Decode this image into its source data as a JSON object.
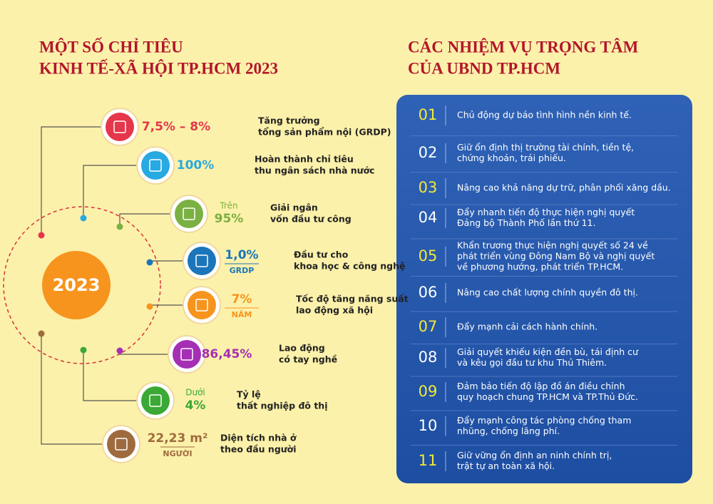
{
  "left": {
    "title_lines": [
      "MỘT SỐ CHỈ TIÊU",
      "KINH TẾ-XÃ HỘI TP.HCM 2023"
    ],
    "center": "2023",
    "items": [
      {
        "value": "7,5% – 8%",
        "label_lines": [
          "Tăng trưởng",
          "tổng sản phẩm nội (GRDP)"
        ]
      },
      {
        "value": "100%",
        "label_lines": [
          "Hoàn thành chỉ tiêu",
          "thu ngân sách nhà nước"
        ]
      },
      {
        "prefix": "Trên",
        "value": "95%",
        "label_lines": [
          "Giải ngân",
          "vốn đầu tư công"
        ]
      },
      {
        "value": "1,0%",
        "unit": "GRDP",
        "label_lines": [
          "Đầu tư cho",
          "khoa học & công nghệ"
        ]
      },
      {
        "value": "7%",
        "unit": "NĂM",
        "label_lines": [
          "Tốc độ tăng năng suất",
          "lao động xã hội"
        ]
      },
      {
        "value": "86,45%",
        "label_lines": [
          "Lao động",
          "có tay nghề"
        ]
      },
      {
        "prefix": "Dưới",
        "value": "4%",
        "label_lines": [
          "Tỷ lệ",
          "thất nghiệp đô thị"
        ]
      },
      {
        "value": "22,23 m²",
        "unit": "NGƯỜI",
        "label_lines": [
          "Diện tích nhà ở",
          "theo đầu người"
        ]
      }
    ]
  },
  "right": {
    "title_lines": [
      "CÁC NHIỆM VỤ TRỌNG TÂM",
      "CỦA UBND TP.HCM"
    ],
    "tasks": [
      {
        "number": "01",
        "text_lines": [
          "Chủ động dự báo tình hình nền kinh tế."
        ]
      },
      {
        "number": "02",
        "text_lines": [
          "Giữ ổn định thị trường tài chính, tiền tệ,",
          "chứng khoán, trái phiếu."
        ]
      },
      {
        "number": "03",
        "text_lines": [
          "Nâng cao khả năng dự trữ, phân phối xăng dầu."
        ]
      },
      {
        "number": "04",
        "text_lines": [
          "Đẩy nhanh tiến độ thực hiện nghị quyết",
          "Đảng bộ Thành Phố lần thứ 11."
        ]
      },
      {
        "number": "05",
        "text_lines": [
          "Khẩn trương thực hiện nghị quyết số 24 về",
          "phát triển vùng Đông Nam Bộ và nghị quyết",
          "về phương hướng, phát triển TP.HCM."
        ]
      },
      {
        "number": "06",
        "text_lines": [
          "Nâng cao chất lượng chính quyền đô thị."
        ]
      },
      {
        "number": "07",
        "text_lines": [
          "Đẩy mạnh cải cách hành chính."
        ]
      },
      {
        "number": "08",
        "text_lines": [
          "Giải quyết khiếu kiện đền bù, tái định cư",
          "và kêu gọi đầu tư khu Thủ Thiêm."
        ]
      },
      {
        "number": "09",
        "text_lines": [
          "Đảm bảo tiến độ lập đồ án điều chỉnh",
          "quy hoạch chung TP.HCM và TP.Thủ Đức."
        ]
      },
      {
        "number": "10",
        "text_lines": [
          "Đẩy mạnh công tác phòng chống tham",
          "nhũng, chống lãng phí."
        ]
      },
      {
        "number": "11",
        "text_lines": [
          "Giữ vững ổn định an ninh chính trị,",
          "trật tự an toàn xã hội."
        ]
      }
    ]
  }
}
